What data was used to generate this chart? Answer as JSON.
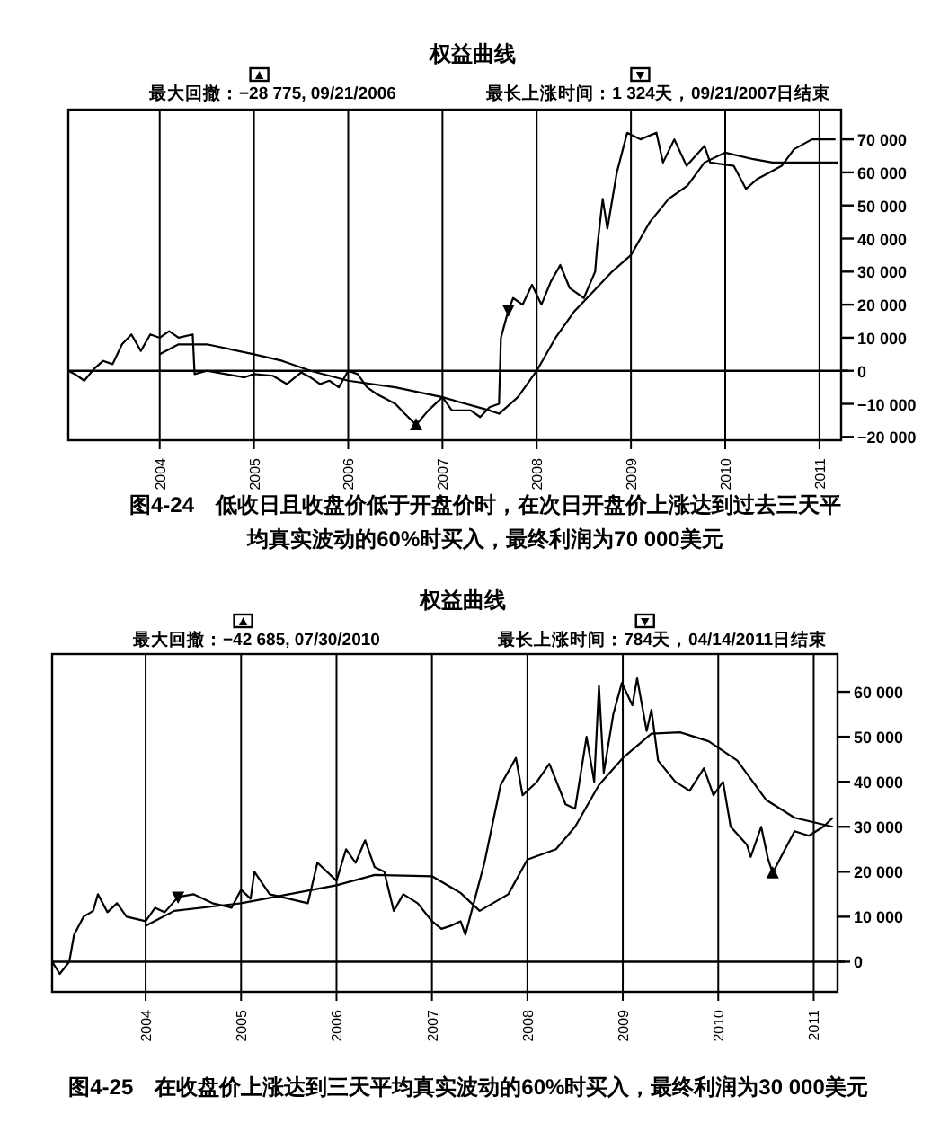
{
  "chart_data": [
    {
      "type": "line",
      "title": "权益曲线",
      "xlim": [
        2003.03,
        2011.23
      ],
      "xticks": [
        2004,
        2005,
        2006,
        2007,
        2008,
        2009,
        2010,
        2011
      ],
      "ylim": [
        -21000,
        79000
      ],
      "yticks": [
        {
          "value": -20000,
          "label": "−20 000"
        },
        {
          "value": -10000,
          "label": "−10 000"
        },
        0,
        {
          "value": 10000,
          "label": "10 000"
        },
        {
          "value": 20000,
          "label": "20 000"
        },
        {
          "value": 30000,
          "label": "30 000"
        },
        {
          "value": 40000,
          "label": "40 000"
        },
        {
          "value": 50000,
          "label": "50 000"
        },
        {
          "value": 60000,
          "label": "60 000"
        },
        {
          "value": 70000,
          "label": "70 000"
        }
      ],
      "grid": "x",
      "ref_lines": [
        {
          "axis": "y",
          "value": 0
        }
      ],
      "annotations": [
        "最大回撤：−28 775, 09/21/2006",
        "最长上涨时间：1 324天，09/21/2007日结束",
        "图4-24　低收日且收盘价低于开盘价时，在次日开盘价上涨达到过去三天平均真实波动的60%时买入，最终利润为70 000美元"
      ],
      "series": [
        {
          "color": "#000000",
          "x": [
            2003.03,
            2003.1,
            2003.2,
            2003.3,
            2003.4,
            2003.5,
            2003.6,
            2003.7,
            2003.8,
            2003.9,
            2004.0,
            2004.1,
            2004.2,
            2004.35,
            2004.37,
            2004.5,
            2004.7,
            2004.9,
            2005.0,
            2005.2,
            2005.35,
            2005.5,
            2005.6,
            2005.7,
            2005.8,
            2005.9,
            2006.0,
            2006.1,
            2006.2,
            2006.3,
            2006.5,
            2006.6,
            2006.72,
            2006.85,
            2007.0,
            2007.1,
            2007.3,
            2007.4,
            2007.5,
            2007.6,
            2007.62,
            2007.7,
            2007.75,
            2007.85,
            2007.95,
            2008.05,
            2008.15,
            2008.25,
            2008.35,
            2008.5,
            2008.62,
            2008.64,
            2008.7,
            2008.75,
            2008.85,
            2008.96,
            2009.1,
            2009.27,
            2009.34,
            2009.46,
            2009.59,
            2009.78,
            2009.84,
            2010.09,
            2010.22,
            2010.34,
            2010.47,
            2010.6,
            2010.73,
            2010.92,
            2011.17
          ],
          "values": [
            0,
            -1000,
            -3000,
            500,
            3000,
            2000,
            8000,
            11000,
            6000,
            11000,
            10000,
            12000,
            10000,
            11000,
            -1000,
            0,
            -1000,
            -2000,
            -1000,
            -1500,
            -4000,
            -500,
            -2000,
            -4000,
            -3000,
            -5000,
            0,
            -1000,
            -5000,
            -7000,
            -10000,
            -13000,
            -16400,
            -12000,
            -8000,
            -12000,
            -12000,
            -14000,
            -11000,
            -10000,
            10000,
            18400,
            22000,
            20000,
            26000,
            20000,
            27000,
            32000,
            25000,
            22000,
            30000,
            37000,
            52000,
            43000,
            60000,
            72000,
            70000,
            72000,
            63000,
            70000,
            62000,
            68000,
            63000,
            62000,
            55000,
            58000,
            60000,
            62000,
            67000,
            70000,
            70000
          ]
        },
        {
          "color": "#000000",
          "x": [
            2004.0,
            2004.2,
            2004.5,
            2005.0,
            2005.3,
            2005.6,
            2006.0,
            2006.5,
            2007.0,
            2007.5,
            2007.6,
            2007.8,
            2008.0,
            2008.2,
            2008.4,
            2008.6,
            2008.8,
            2009.0,
            2009.2,
            2009.4,
            2009.6,
            2009.78,
            2010.0,
            2010.3,
            2010.5,
            2011.2
          ],
          "values": [
            5000,
            8000,
            8000,
            5000,
            3000,
            0,
            -3000,
            -5000,
            -8000,
            -12000,
            -13000,
            -8000,
            0,
            10000,
            18000,
            24000,
            30000,
            35000,
            45000,
            52000,
            56000,
            63000,
            66000,
            64000,
            63000,
            63000
          ]
        },
        {
          "type": "scatter",
          "color": "#000000",
          "x": [
            2006.72
          ],
          "values": [
            -16400
          ]
        },
        {
          "type": "scatter",
          "color": "#000000",
          "x": [
            2007.7
          ],
          "values": [
            18400
          ]
        }
      ]
    },
    {
      "type": "line",
      "title": "权益曲线",
      "xlim": [
        2003.02,
        2011.25
      ],
      "xticks": [
        2004,
        2005,
        2006,
        2007,
        2008,
        2009,
        2010,
        2011
      ],
      "ylim": [
        -6700,
        68400
      ],
      "yticks": [
        0,
        {
          "value": 10000,
          "label": "10 000"
        },
        {
          "value": 20000,
          "label": "20 000"
        },
        {
          "value": 30000,
          "label": "30 000"
        },
        {
          "value": 40000,
          "label": "40 000"
        },
        {
          "value": 50000,
          "label": "50 000"
        },
        {
          "value": 60000,
          "label": "60 000"
        }
      ],
      "grid": "x",
      "ref_lines": [
        {
          "axis": "y",
          "value": 0
        }
      ],
      "annotations": [
        "最大回撤：−42 685, 07/30/2010",
        "最长上涨时间：784天，04/14/2011日结束",
        "图4-25　在收盘价上涨达到三天平均真实波动的60%时买入，最终利润为30 000美元"
      ],
      "series": [
        {
          "color": "#000000",
          "x": [
            2003.02,
            2003.1,
            2003.2,
            2003.25,
            2003.35,
            2003.45,
            2003.5,
            2003.6,
            2003.7,
            2003.8,
            2004.0,
            2004.1,
            2004.2,
            2004.34,
            2004.5,
            2004.7,
            2004.9,
            2005.0,
            2005.1,
            2005.14,
            2005.3,
            2005.5,
            2005.7,
            2005.8,
            2006.0,
            2006.1,
            2006.2,
            2006.3,
            2006.4,
            2006.5,
            2006.6,
            2006.7,
            2006.85,
            2007.0,
            2007.1,
            2007.2,
            2007.3,
            2007.35,
            2007.45,
            2007.55,
            2007.72,
            2007.88,
            2007.95,
            2008.1,
            2008.23,
            2008.4,
            2008.5,
            2008.62,
            2008.7,
            2008.75,
            2008.8,
            2008.9,
            2008.99,
            2009.1,
            2009.15,
            2009.25,
            2009.3,
            2009.37,
            2009.55,
            2009.7,
            2009.85,
            2009.95,
            2010.05,
            2010.13,
            2010.3,
            2010.34,
            2010.45,
            2010.52,
            2010.57,
            2010.7,
            2010.8,
            2010.95,
            2011.1,
            2011.2
          ],
          "values": [
            0,
            -2700,
            0,
            6000,
            10000,
            11300,
            15000,
            11000,
            13000,
            10000,
            9000,
            12000,
            11000,
            14400,
            15000,
            13000,
            12000,
            16000,
            14000,
            20000,
            15000,
            14000,
            13000,
            22000,
            18000,
            25000,
            22000,
            27000,
            21000,
            20000,
            11300,
            15000,
            13000,
            9000,
            7300,
            8000,
            9000,
            6000,
            14000,
            22000,
            39300,
            45300,
            37000,
            40000,
            44000,
            35000,
            34000,
            50000,
            40000,
            61300,
            42000,
            55000,
            62000,
            57000,
            63000,
            51300,
            56000,
            44700,
            40000,
            38000,
            43000,
            37000,
            40000,
            30000,
            26000,
            23300,
            30000,
            23000,
            19700,
            25000,
            29000,
            28000,
            30000,
            32000
          ]
        },
        {
          "color": "#000000",
          "x": [
            2004.0,
            2004.3,
            2005.0,
            2005.5,
            2006.0,
            2006.4,
            2007.0,
            2007.3,
            2007.5,
            2007.8,
            2008.0,
            2008.3,
            2008.5,
            2008.75,
            2009.0,
            2009.3,
            2009.6,
            2009.9,
            2010.2,
            2010.5,
            2010.8,
            2011.2
          ],
          "values": [
            8000,
            11300,
            13000,
            15000,
            17000,
            19300,
            19000,
            15300,
            11300,
            15000,
            22700,
            25000,
            30000,
            39300,
            45300,
            50700,
            51000,
            49000,
            44700,
            36000,
            32000,
            30000
          ]
        },
        {
          "type": "scatter",
          "color": "#000000",
          "x": [
            2010.57
          ],
          "values": [
            19700
          ]
        },
        {
          "type": "scatter",
          "color": "#000000",
          "x": [
            2004.34
          ],
          "values": [
            14400
          ]
        }
      ]
    }
  ]
}
